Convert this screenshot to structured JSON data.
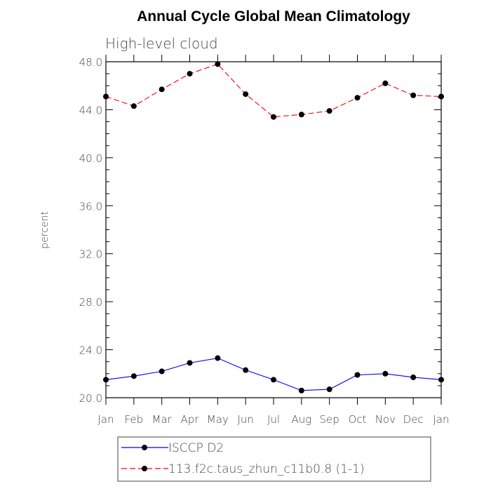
{
  "chart_data": {
    "type": "line",
    "title": "Annual Cycle Global Mean Climatology",
    "subtitle": "High-level cloud",
    "xlabel": "",
    "ylabel": "percent",
    "categories": [
      "Jan",
      "Feb",
      "Mar",
      "Apr",
      "May",
      "Jun",
      "Jul",
      "Aug",
      "Sep",
      "Oct",
      "Nov",
      "Dec",
      "Jan"
    ],
    "ylim": [
      20.0,
      48.0
    ],
    "yticks": [
      "20.0",
      "24.0",
      "28.0",
      "32.0",
      "36.0",
      "40.0",
      "44.0",
      "48.0"
    ],
    "grid": false,
    "legend_position": "bottom",
    "series": [
      {
        "name": "ISCCP D2",
        "color": "#0000ff",
        "dash": "solid",
        "values": [
          21.5,
          21.8,
          22.2,
          22.9,
          23.3,
          22.3,
          21.5,
          20.6,
          20.7,
          21.9,
          22.0,
          21.7,
          21.5
        ]
      },
      {
        "name": "113.f2c.taus_zhun_c11b0.8 (1-1)",
        "color": "#ff0000",
        "dash": "dashed",
        "values": [
          45.1,
          44.3,
          45.7,
          47.0,
          47.8,
          45.3,
          43.4,
          43.6,
          43.9,
          45.0,
          46.2,
          45.2,
          45.1
        ]
      }
    ]
  }
}
